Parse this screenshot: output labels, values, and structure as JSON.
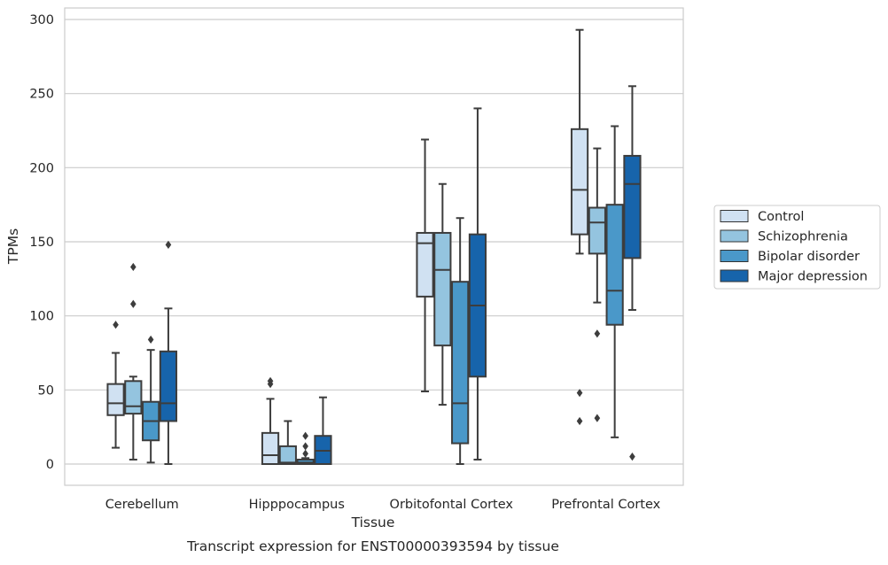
{
  "chart_data": {
    "type": "box",
    "caption": "Transcript expression for ENST00000393594 by tissue",
    "xlabel": "Tissue",
    "ylabel": "TPMs",
    "ylim": [
      -14,
      308
    ],
    "yticks": [
      0,
      50,
      100,
      150,
      200,
      250,
      300
    ],
    "grid": "horizontal",
    "legend_position": "right",
    "categories": [
      "Cerebellum",
      "Hipppocampus",
      "Orbitofontal Cortex",
      "Prefrontal Cortex"
    ],
    "series": [
      {
        "name": "Control",
        "color": "#d0e1f2",
        "boxes": [
          {
            "whislo": 11,
            "q1": 33,
            "med": 41,
            "q3": 54,
            "whishi": 75,
            "fliers": [
              94
            ]
          },
          {
            "whislo": 0,
            "q1": 0,
            "med": 6,
            "q3": 21,
            "whishi": 44,
            "fliers": [
              54,
              56
            ]
          },
          {
            "whislo": 49,
            "q1": 113,
            "med": 149,
            "q3": 156,
            "whishi": 219,
            "fliers": []
          },
          {
            "whislo": 142,
            "q1": 155,
            "med": 185,
            "q3": 226,
            "whishi": 293,
            "fliers": [
              48,
              29
            ]
          }
        ]
      },
      {
        "name": "Schizophrenia",
        "color": "#94c4df",
        "boxes": [
          {
            "whislo": 3,
            "q1": 34,
            "med": 39,
            "q3": 56,
            "whishi": 59,
            "fliers": [
              108,
              133
            ]
          },
          {
            "whislo": 0,
            "q1": 0,
            "med": 1,
            "q3": 12,
            "whishi": 29,
            "fliers": []
          },
          {
            "whislo": 40,
            "q1": 80,
            "med": 131,
            "q3": 156,
            "whishi": 189,
            "fliers": []
          },
          {
            "whislo": 109,
            "q1": 142,
            "med": 163,
            "q3": 173,
            "whishi": 213,
            "fliers": [
              88,
              31
            ]
          }
        ]
      },
      {
        "name": "Bipolar disorder",
        "color": "#4a98c9",
        "boxes": [
          {
            "whislo": 1,
            "q1": 16,
            "med": 29,
            "q3": 42,
            "whishi": 77,
            "fliers": [
              84
            ]
          },
          {
            "whislo": 0,
            "q1": 0,
            "med": 1,
            "q3": 3,
            "whishi": 4,
            "fliers": [
              7,
              12,
              19
            ]
          },
          {
            "whislo": 0,
            "q1": 14,
            "med": 41,
            "q3": 123,
            "whishi": 166,
            "fliers": []
          },
          {
            "whislo": 18,
            "q1": 94,
            "med": 117,
            "q3": 175,
            "whishi": 228,
            "fliers": []
          }
        ]
      },
      {
        "name": "Major depression",
        "color": "#1764ab",
        "boxes": [
          {
            "whislo": 0,
            "q1": 29,
            "med": 41,
            "q3": 76,
            "whishi": 105,
            "fliers": [
              148
            ]
          },
          {
            "whislo": 0,
            "q1": 0,
            "med": 9,
            "q3": 19,
            "whishi": 45,
            "fliers": []
          },
          {
            "whislo": 3,
            "q1": 59,
            "med": 107,
            "q3": 155,
            "whishi": 240,
            "fliers": []
          },
          {
            "whislo": 104,
            "q1": 139,
            "med": 189,
            "q3": 208,
            "whishi": 255,
            "fliers": [
              5
            ]
          }
        ]
      }
    ]
  }
}
